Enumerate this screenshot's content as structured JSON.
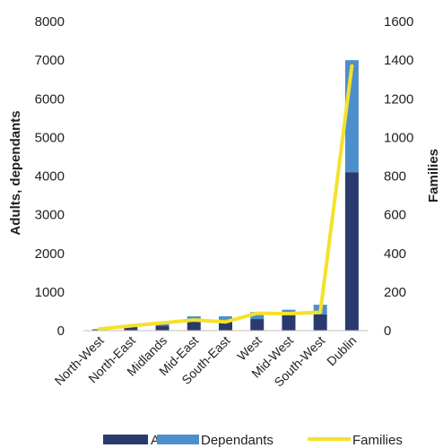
{
  "chart_data": {
    "type": "bar",
    "stacked": true,
    "categories": [
      "North-West",
      "North-East",
      "Midlands",
      "Mid-East",
      "South-East",
      "West",
      "Mid-West",
      "South-West",
      "Dublin"
    ],
    "series": [
      {
        "name": "Adults",
        "type": "bar",
        "axis": "left",
        "color": "#2b3a6e",
        "values": [
          30,
          110,
          130,
          270,
          280,
          300,
          400,
          420,
          4100
        ]
      },
      {
        "name": "Dependants",
        "type": "bar",
        "axis": "left",
        "color": "#4d8fcc",
        "values": [
          10,
          40,
          50,
          100,
          90,
          180,
          140,
          250,
          2900
        ]
      },
      {
        "name": "Families",
        "type": "line",
        "axis": "right",
        "color": "#f5e12a",
        "values": [
          8,
          25,
          40,
          55,
          45,
          90,
          88,
          95,
          1370
        ]
      }
    ],
    "ylabel": "Adults, dependants",
    "y2label": "Families",
    "ylim": [
      0,
      8000
    ],
    "y2lim": [
      0,
      1600
    ],
    "yticks": [
      "0",
      "1000",
      "2000",
      "3000",
      "4000",
      "5000",
      "6000",
      "7000",
      "8000"
    ],
    "y2ticks": [
      "0",
      "200",
      "400",
      "600",
      "800",
      "1000",
      "1200",
      "1400",
      "1600"
    ],
    "grid": false,
    "legend": "bottom"
  }
}
